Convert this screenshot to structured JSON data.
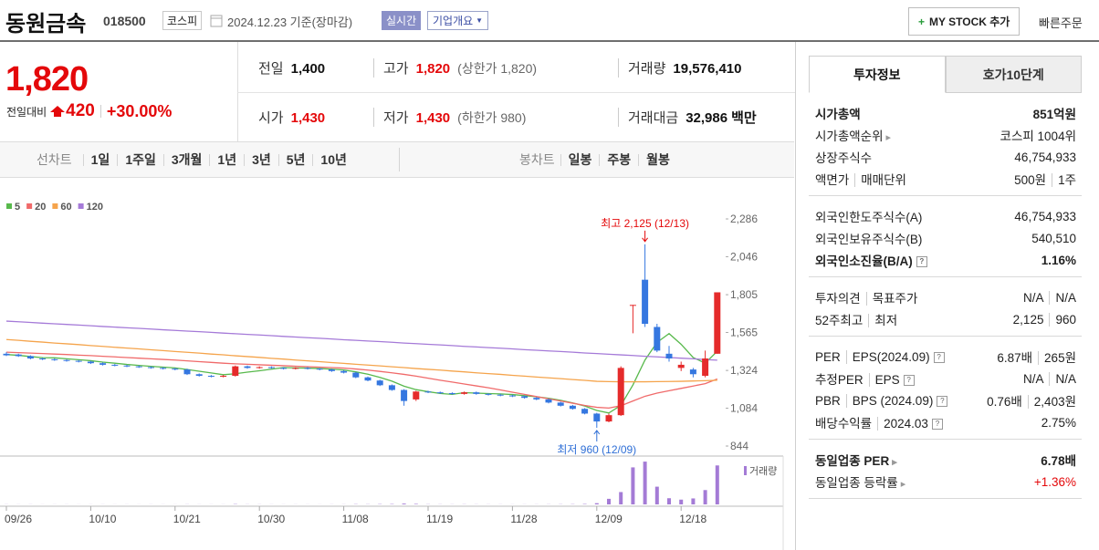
{
  "header": {
    "name": "동원금속",
    "code": "018500",
    "market": "코스피",
    "date": "2024.12.23 기준(장마감)",
    "realtime": "실시간",
    "company_info": "기업개요",
    "my_stock": "MY STOCK 추가",
    "quick_order": "빠른주문"
  },
  "quote": {
    "price": "1,820",
    "change_label": "전일대비",
    "change": "420",
    "change_pct": "+30.00%",
    "items": [
      {
        "label": "전일",
        "value": "1,400"
      },
      {
        "label": "고가",
        "value": "1,820",
        "note": "(상한가 1,820)",
        "color": "#e4080a"
      },
      {
        "label": "거래량",
        "value": "19,576,410"
      },
      {
        "label": "시가",
        "value": "1,430",
        "color": "#e4080a"
      },
      {
        "label": "저가",
        "value": "1,430",
        "note": "(하한가 980)",
        "color": "#e4080a"
      },
      {
        "label": "거래대금",
        "value": "32,986",
        "unit": "백만"
      }
    ]
  },
  "tabs": {
    "line_chart": "선차트",
    "periods": [
      "1일",
      "1주일",
      "3개월",
      "1년",
      "3년",
      "5년",
      "10년"
    ],
    "candle_chart": "봉차트",
    "candle_periods": [
      "일봉",
      "주봉",
      "월봉"
    ]
  },
  "chart_data": {
    "type": "candlestick",
    "categories": [
      "09/26",
      null,
      null,
      null,
      null,
      null,
      null,
      "10/10",
      null,
      null,
      null,
      null,
      null,
      null,
      "10/21",
      null,
      null,
      null,
      null,
      null,
      null,
      "10/30",
      null,
      null,
      null,
      null,
      null,
      null,
      "11/08",
      null,
      null,
      null,
      null,
      null,
      null,
      "11/19",
      null,
      null,
      null,
      null,
      null,
      null,
      "11/28",
      null,
      null,
      null,
      null,
      null,
      null,
      "12/09",
      null,
      null,
      null,
      null,
      null,
      null,
      "12/18",
      null,
      null,
      null
    ],
    "open": [
      1430,
      1425,
      1415,
      1400,
      1395,
      1390,
      1385,
      1380,
      1370,
      1360,
      1355,
      1350,
      1345,
      1340,
      1335,
      1330,
      1300,
      1290,
      1285,
      1290,
      1350,
      1340,
      1345,
      1340,
      1335,
      1340,
      1335,
      1330,
      1320,
      1310,
      1280,
      1260,
      1230,
      1200,
      1140,
      1190,
      1185,
      1180,
      1175,
      1185,
      1175,
      1170,
      1165,
      1160,
      1150,
      1140,
      1120,
      1100,
      1080,
      1050,
      1000,
      1040,
      1740,
      1900,
      1600,
      1430,
      1340,
      1330,
      1290,
      1430
    ],
    "high": [
      1440,
      1430,
      1420,
      1405,
      1400,
      1395,
      1390,
      1385,
      1375,
      1365,
      1360,
      1355,
      1350,
      1345,
      1340,
      1335,
      1305,
      1295,
      1295,
      1355,
      1355,
      1350,
      1350,
      1345,
      1345,
      1345,
      1340,
      1335,
      1325,
      1315,
      1285,
      1265,
      1235,
      1205,
      1195,
      1195,
      1190,
      1185,
      1190,
      1190,
      1180,
      1175,
      1170,
      1165,
      1155,
      1145,
      1125,
      1105,
      1085,
      1055,
      1050,
      1350,
      1740,
      2125,
      1620,
      1480,
      1380,
      1340,
      1450,
      1820
    ],
    "low": [
      1415,
      1410,
      1395,
      1390,
      1385,
      1380,
      1375,
      1365,
      1355,
      1350,
      1345,
      1340,
      1335,
      1330,
      1325,
      1295,
      1285,
      1280,
      1280,
      1285,
      1335,
      1335,
      1335,
      1330,
      1330,
      1330,
      1325,
      1315,
      1305,
      1275,
      1255,
      1225,
      1195,
      1100,
      1130,
      1180,
      1175,
      1170,
      1170,
      1170,
      1165,
      1160,
      1155,
      1145,
      1135,
      1115,
      1095,
      1075,
      1045,
      960,
      995,
      1035,
      1560,
      1600,
      1440,
      1380,
      1320,
      1280,
      1280,
      1430
    ],
    "close": [
      1420,
      1415,
      1400,
      1395,
      1390,
      1385,
      1380,
      1370,
      1360,
      1355,
      1350,
      1345,
      1340,
      1335,
      1330,
      1300,
      1290,
      1285,
      1290,
      1350,
      1340,
      1345,
      1340,
      1335,
      1340,
      1335,
      1330,
      1320,
      1310,
      1280,
      1260,
      1230,
      1200,
      1130,
      1190,
      1185,
      1180,
      1175,
      1185,
      1175,
      1170,
      1165,
      1160,
      1150,
      1140,
      1120,
      1100,
      1080,
      1050,
      1000,
      1040,
      1340,
      1740,
      1620,
      1450,
      1400,
      1360,
      1300,
      1400,
      1820
    ],
    "up_color": "#e52b2b",
    "down_color": "#3577e0",
    "ylim": [
      792,
      2344
    ],
    "yticks": [
      {
        "value": 844,
        "label": "844"
      },
      {
        "value": 1084,
        "label": "1,084"
      },
      {
        "value": 1324,
        "label": "1,324"
      },
      {
        "value": 1565,
        "label": "1,565"
      },
      {
        "value": 1805,
        "label": "1,805"
      },
      {
        "value": 2046,
        "label": "2,046"
      },
      {
        "value": 2286,
        "label": "2,286"
      }
    ],
    "moving_averages": [
      {
        "name": "5",
        "color": "#58b94c",
        "values": [
          1425,
          1420,
          1412,
          1405,
          1404,
          1398,
          1392,
          1386,
          1377,
          1370,
          1362,
          1356,
          1350,
          1345,
          1340,
          1330,
          1319,
          1308,
          1297,
          1303,
          1313,
          1322,
          1332,
          1342,
          1340,
          1339,
          1336,
          1332,
          1327,
          1315,
          1300,
          1280,
          1256,
          1224,
          1202,
          1189,
          1178,
          1172,
          1183,
          1180,
          1177,
          1175,
          1171,
          1164,
          1157,
          1147,
          1134,
          1118,
          1098,
          1070,
          1054,
          1102,
          1232,
          1390,
          1502,
          1558,
          1490,
          1406,
          1370,
          1446
        ]
      },
      {
        "name": "20",
        "color": "#f06a6a",
        "values": [
          1440,
          1437,
          1434,
          1431,
          1428,
          1425,
          1421,
          1418,
          1414,
          1410,
          1406,
          1402,
          1398,
          1394,
          1390,
          1385,
          1380,
          1375,
          1370,
          1366,
          1363,
          1360,
          1357,
          1354,
          1351,
          1348,
          1345,
          1342,
          1339,
          1333,
          1326,
          1318,
          1309,
          1299,
          1288,
          1275,
          1262,
          1250,
          1238,
          1226,
          1214,
          1200,
          1186,
          1172,
          1158,
          1144,
          1130,
          1116,
          1102,
          1090,
          1085,
          1100,
          1130,
          1160,
          1180,
          1195,
          1210,
          1225,
          1240,
          1270
        ]
      },
      {
        "name": "60",
        "color": "#f5a44c",
        "values": [
          1520,
          1515,
          1509,
          1504,
          1498,
          1493,
          1488,
          1482,
          1477,
          1471,
          1466,
          1461,
          1455,
          1450,
          1444,
          1439,
          1434,
          1428,
          1423,
          1417,
          1412,
          1407,
          1401,
          1396,
          1390,
          1385,
          1380,
          1374,
          1369,
          1363,
          1358,
          1353,
          1347,
          1342,
          1336,
          1331,
          1326,
          1320,
          1315,
          1309,
          1304,
          1299,
          1293,
          1288,
          1282,
          1277,
          1272,
          1266,
          1261,
          1255,
          1253,
          1252,
          1252,
          1252,
          1253,
          1254,
          1255,
          1257,
          1259,
          1262
        ]
      },
      {
        "name": "120",
        "color": "#a57ad8",
        "values": [
          1637,
          1633,
          1629,
          1624,
          1620,
          1616,
          1612,
          1608,
          1603,
          1599,
          1595,
          1591,
          1587,
          1582,
          1578,
          1574,
          1570,
          1566,
          1561,
          1557,
          1553,
          1549,
          1545,
          1540,
          1536,
          1532,
          1528,
          1524,
          1519,
          1515,
          1511,
          1507,
          1503,
          1498,
          1494,
          1490,
          1486,
          1482,
          1477,
          1473,
          1469,
          1465,
          1461,
          1456,
          1452,
          1448,
          1444,
          1440,
          1435,
          1431,
          1427,
          1423,
          1419,
          1414,
          1410,
          1406,
          1402,
          1398,
          1393,
          1389
        ]
      }
    ],
    "volume": {
      "name": "거래량",
      "color": "#a47bd6",
      "ylim": [
        0,
        22000000
      ],
      "values": [
        50000,
        40000,
        45000,
        30000,
        35000,
        40000,
        30000,
        35000,
        40000,
        30000,
        35000,
        30000,
        40000,
        35000,
        30000,
        60000,
        40000,
        35000,
        40000,
        150000,
        60000,
        50000,
        40000,
        35000,
        40000,
        35000,
        30000,
        45000,
        50000,
        120000,
        90000,
        150000,
        180000,
        400000,
        250000,
        90000,
        70000,
        60000,
        80000,
        60000,
        50000,
        45000,
        40000,
        45000,
        50000,
        70000,
        90000,
        120000,
        200000,
        600000,
        2800000,
        6200000,
        18600000,
        21500000,
        8900000,
        3100000,
        2400000,
        3000000,
        7200000,
        19576410
      ]
    },
    "max_annotation": {
      "text": "최고 2,125 (12/13)",
      "color": "#e4080a"
    },
    "min_annotation": {
      "text": "최저 960 (12/09)",
      "color": "#2f6fd6"
    }
  },
  "sidebar": {
    "tabs": [
      "투자정보",
      "호가10단계"
    ],
    "groups": [
      [
        {
          "label": [
            "시가총액"
          ],
          "value": [
            "851억원"
          ],
          "bold": true
        },
        {
          "label": [
            "시가총액순위"
          ],
          "value": [
            "코스피 1004위"
          ],
          "link": true
        },
        {
          "label": [
            "상장주식수"
          ],
          "value": [
            "46,754,933"
          ]
        },
        {
          "label": [
            "액면가",
            "매매단위"
          ],
          "value": [
            "500원",
            "1주"
          ]
        }
      ],
      [
        {
          "label": [
            "외국인한도주식수(A)"
          ],
          "value": [
            "46,754,933"
          ]
        },
        {
          "label": [
            "외국인보유주식수(B)"
          ],
          "value": [
            "540,510"
          ]
        },
        {
          "label": [
            "외국인소진율(B/A)"
          ],
          "value": [
            "1.16%"
          ],
          "bold": true,
          "help": true
        }
      ],
      [
        {
          "label": [
            "투자의견",
            "목표주가"
          ],
          "value": [
            "N/A",
            "N/A"
          ]
        },
        {
          "label": [
            "52주최고",
            "최저"
          ],
          "value": [
            "2,125",
            "960"
          ]
        }
      ],
      [
        {
          "label": [
            "PER",
            "EPS(2024.09)"
          ],
          "value": [
            "6.87배",
            "265원"
          ],
          "help": true
        },
        {
          "label": [
            "추정PER",
            "EPS"
          ],
          "value": [
            "N/A",
            "N/A"
          ],
          "help": true
        },
        {
          "label": [
            "PBR",
            "BPS (2024.09)"
          ],
          "value": [
            "0.76배",
            "2,403원"
          ],
          "help": true
        },
        {
          "label": [
            "배당수익률",
            "2024.03"
          ],
          "value": [
            "2.75%"
          ],
          "help": true
        }
      ],
      [
        {
          "label": [
            "동일업종 PER"
          ],
          "value": [
            "6.78배"
          ],
          "bold": true,
          "link": true
        },
        {
          "label": [
            "동일업종 등락률"
          ],
          "value": [
            "+1.36%"
          ],
          "link": true,
          "color": "#e4080a"
        }
      ]
    ]
  }
}
